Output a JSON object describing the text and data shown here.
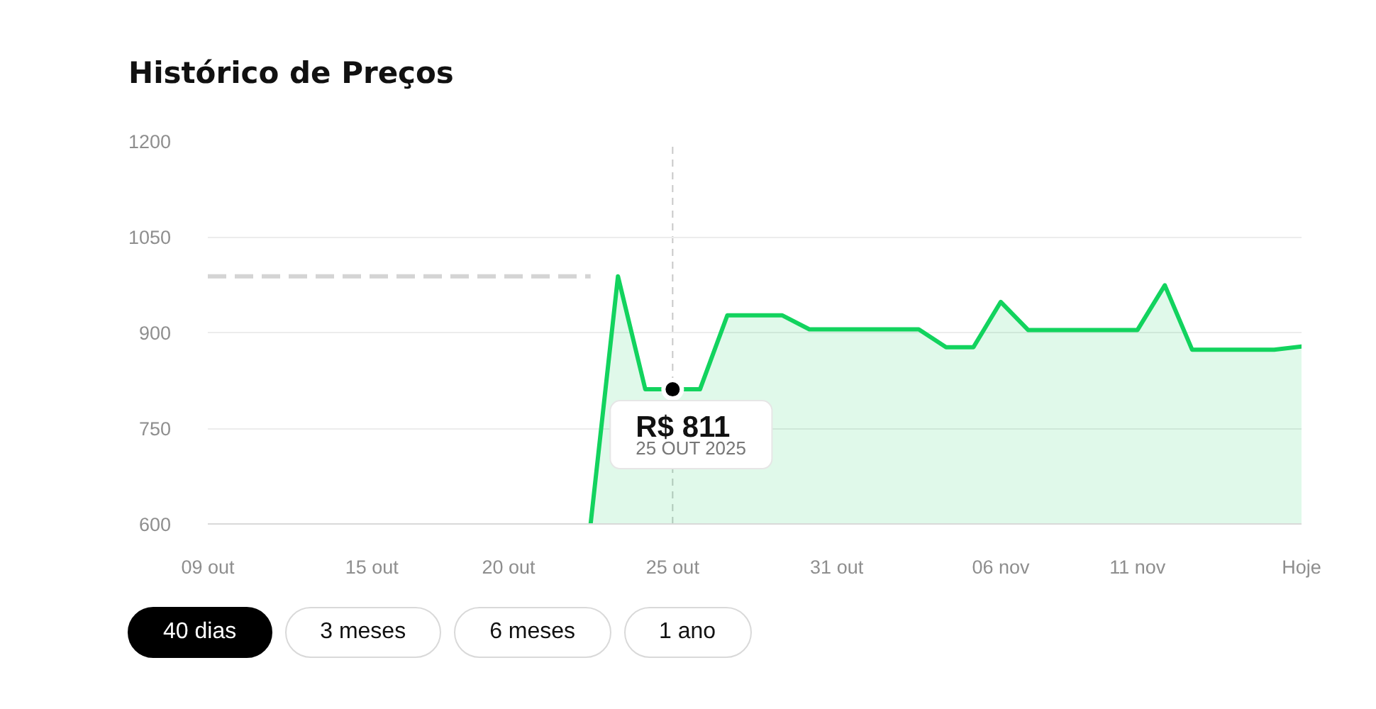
{
  "chart_data": {
    "type": "area",
    "title": "Histórico de Preços",
    "categories": [
      "09 out",
      null,
      null,
      null,
      null,
      null,
      "15 out",
      null,
      null,
      null,
      null,
      "20 out",
      null,
      null,
      null,
      null,
      null,
      "25 out",
      null,
      null,
      null,
      null,
      null,
      "31 out",
      null,
      null,
      null,
      null,
      null,
      "06 nov",
      null,
      null,
      null,
      null,
      "11 nov",
      null,
      null,
      null,
      null,
      null,
      "Hoje"
    ],
    "ylim": [
      600,
      1200
    ],
    "yticks": [
      600,
      750,
      900,
      1050,
      1200
    ],
    "grid": "y",
    "series": [
      {
        "color": "#12d35e",
        "values": [
          null,
          null,
          null,
          null,
          null,
          null,
          null,
          null,
          null,
          null,
          null,
          null,
          null,
          null,
          600,
          988,
          811,
          811,
          811,
          927,
          927,
          927,
          905,
          905,
          905,
          905,
          905,
          877,
          877,
          948,
          904,
          904,
          904,
          904,
          904,
          974,
          873,
          873,
          873,
          873,
          878
        ]
      },
      {
        "type": "line",
        "color": "#d4d4d4",
        "line_style": "dashed",
        "values": [
          988,
          988,
          988,
          988,
          988,
          988,
          988,
          988,
          988,
          988,
          988,
          988,
          988,
          988,
          988,
          null,
          null,
          null,
          null,
          null,
          null,
          null,
          null,
          null,
          null,
          null,
          null,
          null,
          null,
          null,
          null,
          null,
          null,
          null,
          null,
          null,
          null,
          null,
          null,
          null,
          null
        ]
      }
    ],
    "ref_lines": [
      {
        "axis": "x",
        "value": "25 out",
        "color": "#c8c8c8",
        "line_style": "dashed"
      }
    ],
    "annotations": [
      {
        "text": "R$ 811",
        "x": "25 out",
        "y": 811
      },
      {
        "text": "25 OUT 2025",
        "x": "25 out",
        "y": 811
      },
      "40 dias",
      "3 meses",
      "6 meses",
      "1 ano"
    ]
  }
}
